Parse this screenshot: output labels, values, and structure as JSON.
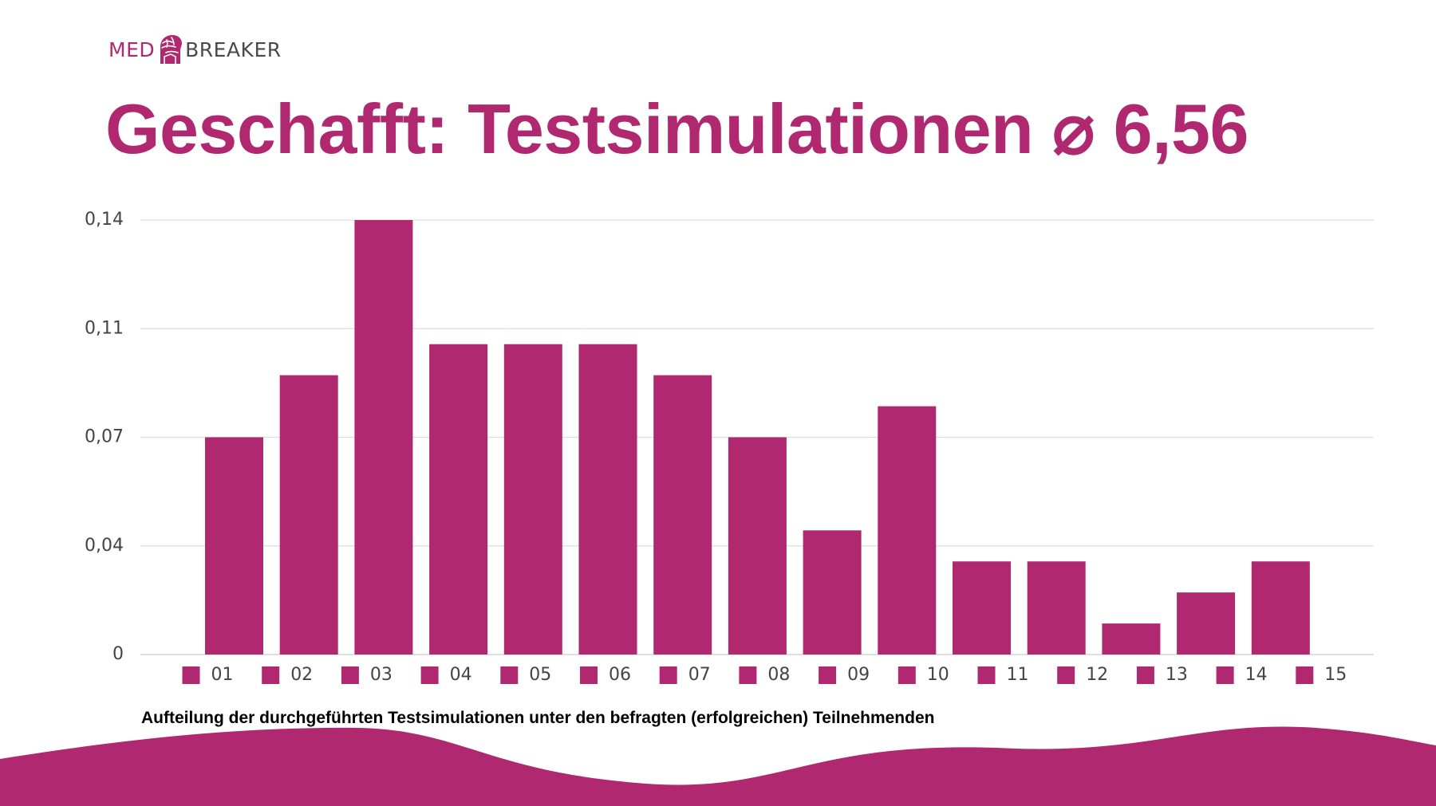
{
  "brand": {
    "part1": "MED",
    "part2": "BREAKER",
    "color": "#b0286f"
  },
  "title": "Geschafft: Testsimulationen ⌀ 6,56",
  "caption": "Aufteilung der durchgeführten Testsimulationen unter den befragten (erfolgreichen) Teilnehmenden",
  "chart_data": {
    "type": "bar",
    "title": "Geschafft: Testsimulationen ⌀ 6,56",
    "xlabel": "",
    "ylabel": "",
    "categories": [
      "01",
      "02",
      "03",
      "04",
      "05",
      "06",
      "07",
      "08",
      "09",
      "10",
      "11",
      "12",
      "13",
      "14",
      "15"
    ],
    "values": [
      0.07,
      0.09,
      0.14,
      0.1,
      0.1,
      0.1,
      0.09,
      0.07,
      0.04,
      0.08,
      0.03,
      0.03,
      0.01,
      0.02,
      0.03
    ],
    "yticks": [
      0,
      0.035,
      0.07,
      0.105,
      0.14
    ],
    "ytick_labels": [
      "0",
      "0,04",
      "0,07",
      "0,11",
      "0,14"
    ],
    "ylim": [
      0,
      0.14
    ],
    "grid": true,
    "legend_position": "bottom",
    "bar_color": "#b0286f",
    "grid_color": "#dddddd"
  }
}
